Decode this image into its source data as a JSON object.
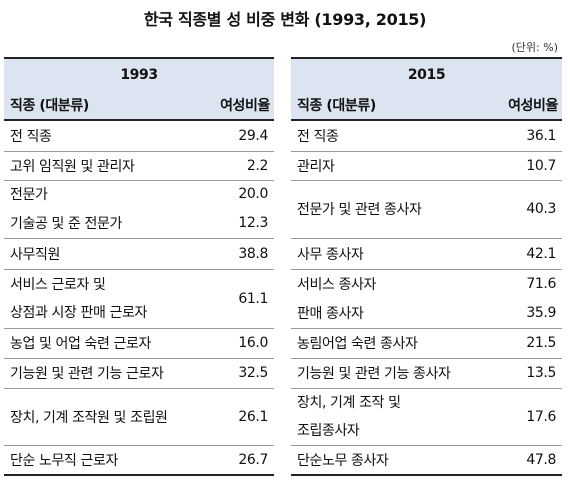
{
  "title": "한국 직종별 성 비중 변화 (1993, 2015)",
  "unit": "(단위: %)",
  "col_header_occupation": "직종 (대분류)",
  "col_header_ratio": "여성비율",
  "t1993": {
    "year": "1993",
    "rows": [
      {
        "label": "전 직종",
        "value": "29.4"
      },
      {
        "label": "고위 임직원 및 관리자",
        "value": "2.2"
      },
      {
        "label": "전문가",
        "value": "20.0"
      },
      {
        "label": "기술공 및 준 전문가",
        "value": "12.3"
      },
      {
        "label": "사무직원",
        "value": "38.8"
      },
      {
        "label_line1": "서비스 근로자 및",
        "label_line2": "상점과 시장 판매 근로자",
        "value": "61.1"
      },
      {
        "label": "농업 및 어업 숙련 근로자",
        "value": "16.0"
      },
      {
        "label": "기능원 및 관련 기능 근로자",
        "value": "32.5"
      },
      {
        "label": "장치, 기계 조작원 및 조립원",
        "value": "26.1"
      },
      {
        "label": "단순 노무직 근로자",
        "value": "26.7"
      }
    ]
  },
  "t2015": {
    "year": "2015",
    "rows": [
      {
        "label": "전 직종",
        "value": "36.1"
      },
      {
        "label": "관리자",
        "value": "10.7"
      },
      {
        "label": "전문가 및 관련 종사자",
        "value": "40.3"
      },
      {
        "label": "사무 종사자",
        "value": "42.1"
      },
      {
        "label": "서비스 종사자",
        "value": "71.6"
      },
      {
        "label": "판매 종사자",
        "value": "35.9"
      },
      {
        "label": "농림어업 숙련 종사자",
        "value": "21.5"
      },
      {
        "label": "기능원 및 관련 기능 종사자",
        "value": "13.5"
      },
      {
        "label_line1": "장치, 기계 조작 및",
        "label_line2": "조립종사자",
        "value": "17.6"
      },
      {
        "label": "단순노무 종사자",
        "value": "47.8"
      }
    ]
  }
}
